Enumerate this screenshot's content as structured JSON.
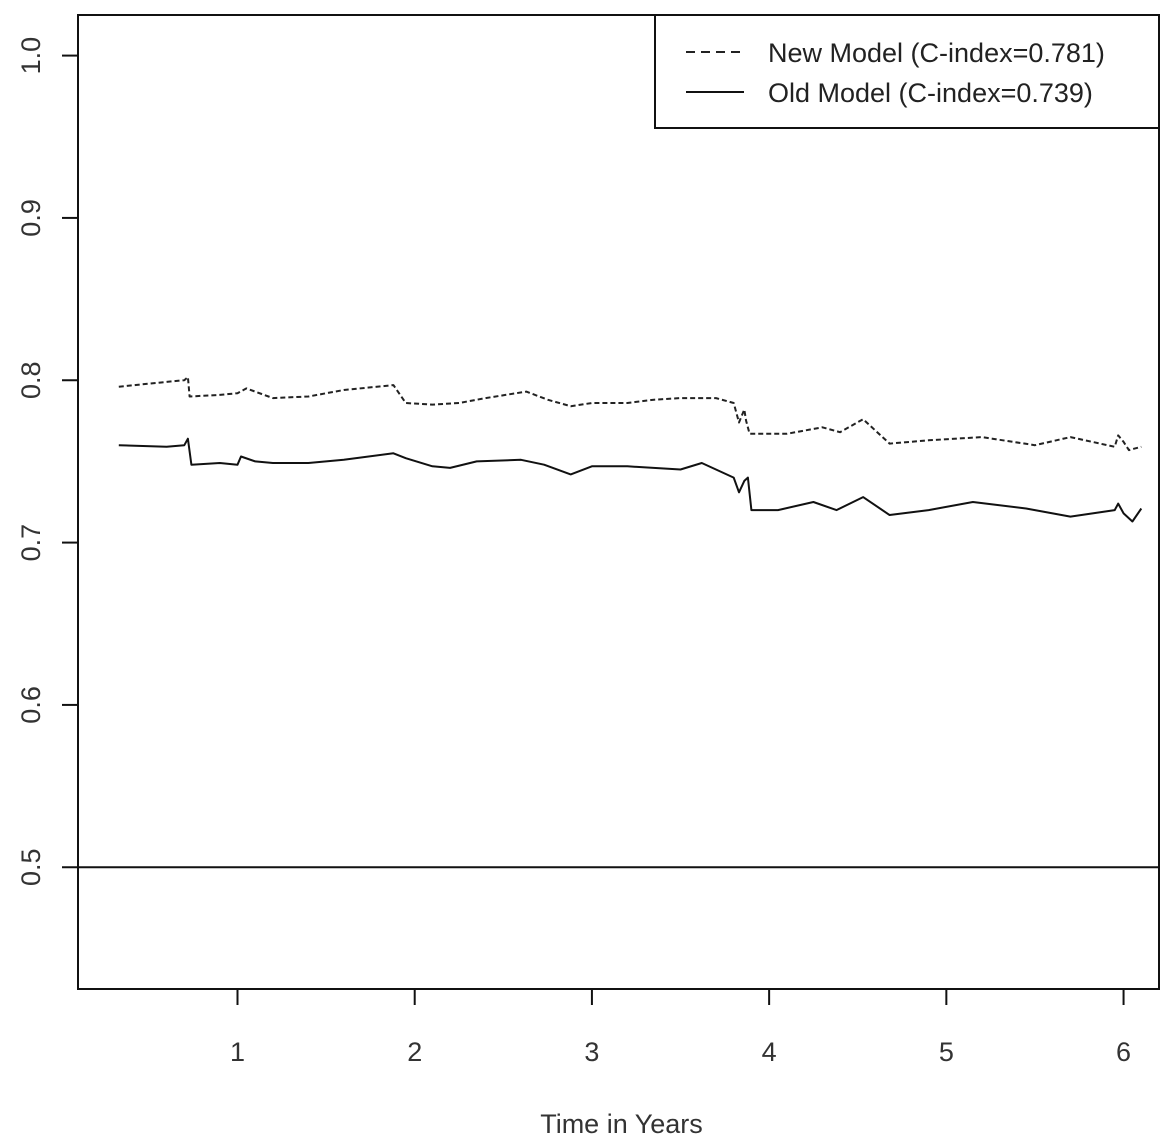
{
  "chart_data": {
    "type": "line",
    "title": "",
    "xlabel": "Time in Years",
    "ylabel": "",
    "xlim": [
      0.1,
      6.2
    ],
    "ylim": [
      0.425,
      1.025
    ],
    "x_ticks": [
      1,
      2,
      3,
      4,
      5,
      6
    ],
    "x_tick_labels": [
      "1",
      "2",
      "3",
      "4",
      "5",
      "6"
    ],
    "y_ticks": [
      0.5,
      0.6,
      0.7,
      0.8,
      0.9,
      1.0
    ],
    "y_tick_labels": [
      "0.5",
      "0.6",
      "0.7",
      "0.8",
      "0.9",
      "1.0"
    ],
    "grid": false,
    "legend_position": "top-right",
    "reference_line": {
      "y": 0.5
    },
    "series": [
      {
        "name": "New Model (C-index=0.781)",
        "line_style": "dashed",
        "color": "#222222",
        "x": [
          0.33,
          0.6,
          0.7,
          0.72,
          0.73,
          0.9,
          1.0,
          1.05,
          1.2,
          1.4,
          1.6,
          1.88,
          1.95,
          2.1,
          2.25,
          2.4,
          2.63,
          2.75,
          2.88,
          3.0,
          3.2,
          3.35,
          3.5,
          3.7,
          3.8,
          3.83,
          3.86,
          3.87,
          3.89,
          4.1,
          4.3,
          4.4,
          4.53,
          4.68,
          4.9,
          5.2,
          5.5,
          5.7,
          5.95,
          5.97,
          6.0,
          6.03,
          6.1
        ],
        "y": [
          0.796,
          0.799,
          0.8,
          0.802,
          0.79,
          0.791,
          0.792,
          0.795,
          0.789,
          0.79,
          0.794,
          0.797,
          0.786,
          0.785,
          0.786,
          0.789,
          0.793,
          0.788,
          0.784,
          0.786,
          0.786,
          0.788,
          0.789,
          0.789,
          0.786,
          0.774,
          0.782,
          0.775,
          0.767,
          0.767,
          0.771,
          0.768,
          0.776,
          0.761,
          0.763,
          0.765,
          0.76,
          0.765,
          0.759,
          0.766,
          0.762,
          0.757,
          0.759
        ]
      },
      {
        "name": "Old Model (C-index=0.739)",
        "line_style": "solid",
        "color": "#111111",
        "x": [
          0.33,
          0.6,
          0.7,
          0.72,
          0.74,
          0.9,
          1.0,
          1.02,
          1.1,
          1.2,
          1.4,
          1.6,
          1.88,
          1.95,
          2.1,
          2.2,
          2.35,
          2.6,
          2.73,
          2.88,
          3.0,
          3.2,
          3.5,
          3.62,
          3.8,
          3.83,
          3.86,
          3.88,
          3.9,
          4.05,
          4.25,
          4.38,
          4.53,
          4.68,
          4.9,
          5.15,
          5.45,
          5.7,
          5.95,
          5.97,
          6.0,
          6.05,
          6.1
        ],
        "y": [
          0.76,
          0.759,
          0.76,
          0.764,
          0.748,
          0.749,
          0.748,
          0.753,
          0.75,
          0.749,
          0.749,
          0.751,
          0.755,
          0.752,
          0.747,
          0.746,
          0.75,
          0.751,
          0.748,
          0.742,
          0.747,
          0.747,
          0.745,
          0.749,
          0.74,
          0.731,
          0.738,
          0.74,
          0.72,
          0.72,
          0.725,
          0.72,
          0.728,
          0.717,
          0.72,
          0.725,
          0.721,
          0.716,
          0.72,
          0.724,
          0.718,
          0.713,
          0.721
        ]
      }
    ]
  }
}
